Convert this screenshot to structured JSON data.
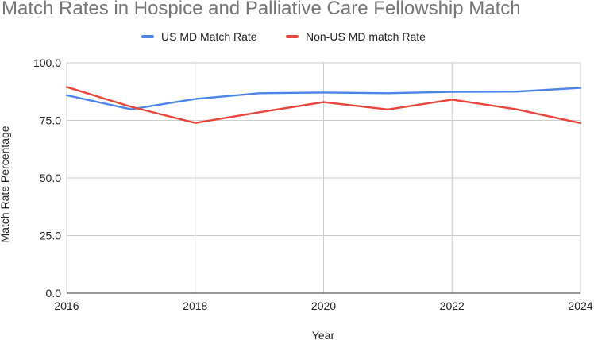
{
  "chart_data": {
    "type": "line",
    "title": "Match Rates in Hospice and Palliative Care Fellowship Match",
    "xlabel": "Year",
    "ylabel": "Match Rate Percentage",
    "x": [
      2016,
      2017,
      2018,
      2019,
      2020,
      2021,
      2022,
      2023,
      2024
    ],
    "xticks": [
      "2016",
      "2018",
      "2020",
      "2022",
      "2024"
    ],
    "yticks": [
      "0.0",
      "25.0",
      "50.0",
      "75.0",
      "100.0"
    ],
    "xlim": [
      2016,
      2024
    ],
    "ylim": [
      0,
      100
    ],
    "grid": true,
    "legend_position": "top",
    "series": [
      {
        "name": "US MD Match Rate",
        "color": "#4a86e8",
        "values": [
          85.9,
          79.8,
          84.3,
          86.8,
          87.1,
          86.8,
          87.4,
          87.5,
          89.1
        ]
      },
      {
        "name": "Non-US MD match Rate",
        "color": "#e8453c",
        "values": [
          89.5,
          80.9,
          73.9,
          78.5,
          82.9,
          79.7,
          84.0,
          79.8,
          73.8
        ]
      }
    ]
  }
}
